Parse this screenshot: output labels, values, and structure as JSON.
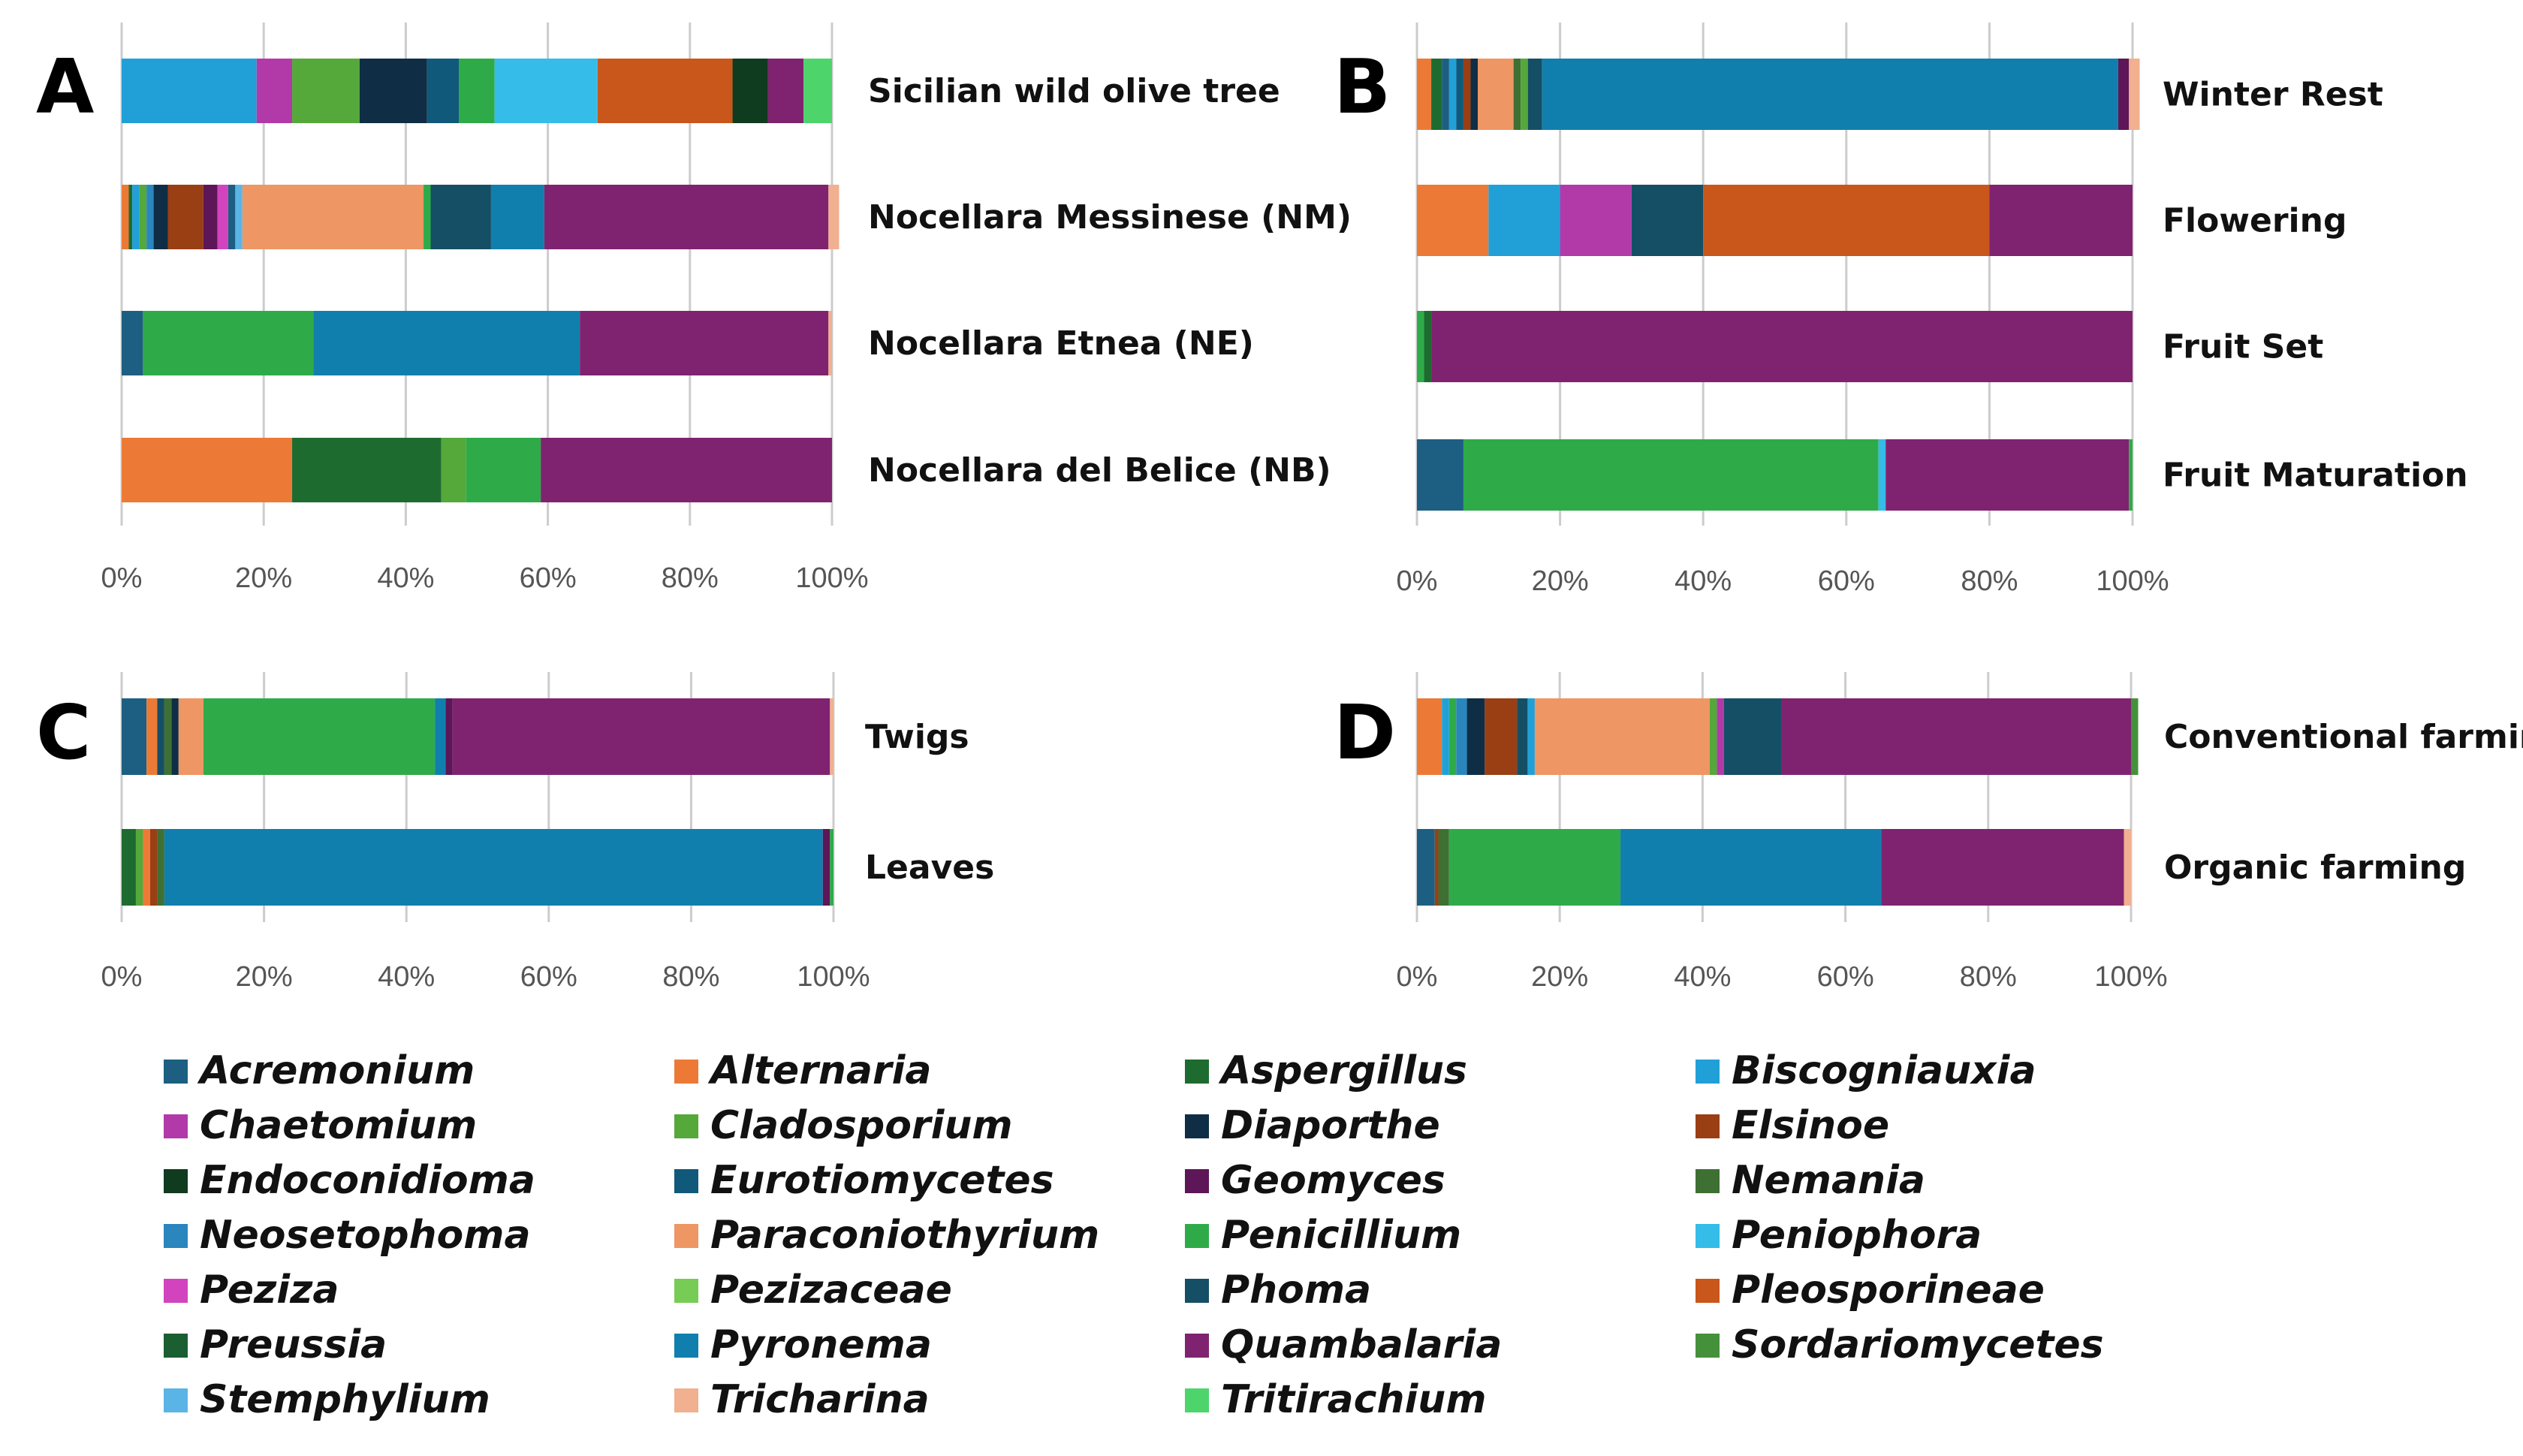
{
  "palette": {
    "Acremonium": "#1d5f82",
    "Alternaria": "#ec7a36",
    "Aspergillus": "#1e6b30",
    "Biscogniauxia": "#21a0d8",
    "Chaetomium": "#b13aa8",
    "Cladosporium": "#55a83a",
    "Diaporthe": "#0f2e45",
    "Elsinoe": "#9a3f14",
    "Endoconidioma": "#0f3b1f",
    "Eurotiomycetes": "#11597a",
    "Geomyces": "#5d1657",
    "Nemania": "#3e7033",
    "Neosetophoma": "#2a86bd",
    "Paraconiothyrium": "#ee9664",
    "Penicillium": "#2eab48",
    "Peniophora": "#35bce8",
    "Peziza": "#d244be",
    "Pezizaceae": "#77cc55",
    "Phoma": "#154f65",
    "Pleosporineae": "#c9561b",
    "Preussia": "#1b5e31",
    "Pyronema": "#117fad",
    "Quambalaria": "#7f2370",
    "Sordariomycetes": "#45913b",
    "Stemphylium": "#5bb4e6",
    "Tricharina": "#f1b08f",
    "Tritirachium": "#4dd56c",
    "axis": "#cccccc"
  },
  "chart_data": [
    {
      "panel": "A",
      "type": "bar",
      "orientation": "horizontal-stacked-percent",
      "xlim": [
        0,
        100
      ],
      "ticks": [
        "0%",
        "20%",
        "40%",
        "60%",
        "80%",
        "100%"
      ],
      "categories": [
        "Sicilian wild olive tree",
        "Nocellara Messinese (NM)",
        "Nocellara Etnea (NE)",
        "Nocellara del Belice (NB)"
      ],
      "bars": [
        [
          [
            "Biscogniauxia",
            19
          ],
          [
            "Chaetomium",
            5
          ],
          [
            "Cladosporium",
            9.5
          ],
          [
            "Diaporthe",
            9.5
          ],
          [
            "Eurotiomycetes",
            4.5
          ],
          [
            "Penicillium",
            5
          ],
          [
            "Peniophora",
            14.5
          ],
          [
            "Pleosporineae",
            19
          ],
          [
            "Endoconidioma",
            5
          ],
          [
            "Quambalaria",
            5
          ],
          [
            "Tritirachium",
            4
          ]
        ],
        [
          [
            "Alternaria",
            1
          ],
          [
            "Aspergillus",
            0.5
          ],
          [
            "Biscogniauxia",
            1
          ],
          [
            "Cladosporium",
            1
          ],
          [
            "Neosetophoma",
            1
          ],
          [
            "Diaporthe",
            2
          ],
          [
            "Elsinoe",
            5
          ],
          [
            "Geomyces",
            2
          ],
          [
            "Peziza",
            1.5
          ],
          [
            "Acremonium",
            1
          ],
          [
            "Stemphylium",
            1
          ],
          [
            "Paraconiothyrium",
            25.5
          ],
          [
            "Penicillium",
            1
          ],
          [
            "Phoma",
            8.5
          ],
          [
            "Pyronema",
            7.5
          ],
          [
            "Quambalaria",
            40
          ],
          [
            "Tricharina",
            1.5
          ]
        ],
        [
          [
            "Acremonium",
            3
          ],
          [
            "Penicillium",
            24
          ],
          [
            "Pyronema",
            37.5
          ],
          [
            "Quambalaria",
            35
          ],
          [
            "Tricharina",
            0.5
          ]
        ],
        [
          [
            "Alternaria",
            24
          ],
          [
            "Aspergillus",
            21
          ],
          [
            "Cladosporium",
            3.5
          ],
          [
            "Penicillium",
            10.5
          ],
          [
            "Quambalaria",
            41
          ]
        ]
      ]
    },
    {
      "panel": "B",
      "type": "bar",
      "orientation": "horizontal-stacked-percent",
      "xlim": [
        0,
        100
      ],
      "ticks": [
        "0%",
        "20%",
        "40%",
        "60%",
        "80%",
        "100%"
      ],
      "categories": [
        "Winter Rest",
        "Flowering",
        "Fruit Set",
        "Fruit Maturation"
      ],
      "bars": [
        [
          [
            "Alternaria",
            2
          ],
          [
            "Aspergillus",
            1.5
          ],
          [
            "Acremonium",
            1
          ],
          [
            "Biscogniauxia",
            1
          ],
          [
            "Eurotiomycetes",
            1
          ],
          [
            "Elsinoe",
            1
          ],
          [
            "Diaporthe",
            1
          ],
          [
            "Paraconiothyrium",
            5
          ],
          [
            "Nemania",
            1
          ],
          [
            "Cladosporium",
            1
          ],
          [
            "Phoma",
            2
          ],
          [
            "Pyronema",
            80.5
          ],
          [
            "Geomyces",
            1.5
          ],
          [
            "Tricharina",
            1.5
          ]
        ],
        [
          [
            "Alternaria",
            10
          ],
          [
            "Biscogniauxia",
            10
          ],
          [
            "Chaetomium",
            10
          ],
          [
            "Phoma",
            10
          ],
          [
            "Pleosporineae",
            40
          ],
          [
            "Quambalaria",
            20
          ]
        ],
        [
          [
            "Penicillium",
            1
          ],
          [
            "Aspergillus",
            1
          ],
          [
            "Quambalaria",
            98
          ]
        ],
        [
          [
            "Acremonium",
            6.5
          ],
          [
            "Penicillium",
            58
          ],
          [
            "Peniophora",
            1
          ],
          [
            "Quambalaria",
            34
          ],
          [
            "Penicillium",
            0.5
          ]
        ]
      ]
    },
    {
      "panel": "C",
      "type": "bar",
      "orientation": "horizontal-stacked-percent",
      "xlim": [
        0,
        100
      ],
      "ticks": [
        "0%",
        "20%",
        "40%",
        "60%",
        "80%",
        "100%"
      ],
      "categories": [
        "Twigs",
        "Leaves"
      ],
      "bars": [
        [
          [
            "Acremonium",
            3.5
          ],
          [
            "Alternaria",
            1.5
          ],
          [
            "Phoma",
            1
          ],
          [
            "Nemania",
            1
          ],
          [
            "Diaporthe",
            1
          ],
          [
            "Paraconiothyrium",
            3.5
          ],
          [
            "Penicillium",
            32.5
          ],
          [
            "Pyronema",
            1.5
          ],
          [
            "Geomyces",
            1
          ],
          [
            "Quambalaria",
            53
          ],
          [
            "Tricharina",
            0.5
          ]
        ],
        [
          [
            "Aspergillus",
            2
          ],
          [
            "Cladosporium",
            1
          ],
          [
            "Alternaria",
            1
          ],
          [
            "Elsinoe",
            1
          ],
          [
            "Nemania",
            1
          ],
          [
            "Pyronema",
            92.5
          ],
          [
            "Geomyces",
            1
          ],
          [
            "Penicillium",
            0.5
          ]
        ]
      ]
    },
    {
      "panel": "D",
      "type": "bar",
      "orientation": "horizontal-stacked-percent",
      "xlim": [
        0,
        100
      ],
      "ticks": [
        "0%",
        "20%",
        "40%",
        "60%",
        "80%",
        "100%"
      ],
      "categories": [
        "Conventional farming",
        "Organic farming"
      ],
      "bars": [
        [
          [
            "Alternaria",
            3.5
          ],
          [
            "Biscogniauxia",
            1
          ],
          [
            "Penicillium",
            1
          ],
          [
            "Neosetophoma",
            1.5
          ],
          [
            "Diaporthe",
            2.5
          ],
          [
            "Elsinoe",
            4.5
          ],
          [
            "Phoma",
            1.5
          ],
          [
            "Biscogniauxia",
            1
          ],
          [
            "Paraconiothyrium",
            24.5
          ],
          [
            "Cladosporium",
            1
          ],
          [
            "Chaetomium",
            1
          ],
          [
            "Phoma",
            8
          ],
          [
            "Quambalaria",
            49
          ],
          [
            "Sordariomycetes",
            1
          ]
        ],
        [
          [
            "Acremonium",
            2.5
          ],
          [
            "Elsinoe",
            0.5
          ],
          [
            "Nemania",
            1.5
          ],
          [
            "Penicillium",
            24
          ],
          [
            "Pyronema",
            36.5
          ],
          [
            "Quambalaria",
            34
          ],
          [
            "Tricharina",
            1
          ]
        ]
      ]
    }
  ],
  "legend": [
    "Acremonium",
    "Alternaria",
    "Aspergillus",
    "Biscogniauxia",
    "Chaetomium",
    "Cladosporium",
    "Diaporthe",
    "Elsinoe",
    "Endoconidioma",
    "Eurotiomycetes",
    "Geomyces",
    "Nemania",
    "Neosetophoma",
    "Paraconiothyrium",
    "Penicillium",
    "Peniophora",
    "Peziza",
    "Pezizaceae",
    "Phoma",
    "Pleosporineae",
    "Preussia",
    "Pyronema",
    "Quambalaria",
    "Sordariomycetes",
    "Stemphylium",
    "Tricharina",
    "Tritirachium"
  ]
}
